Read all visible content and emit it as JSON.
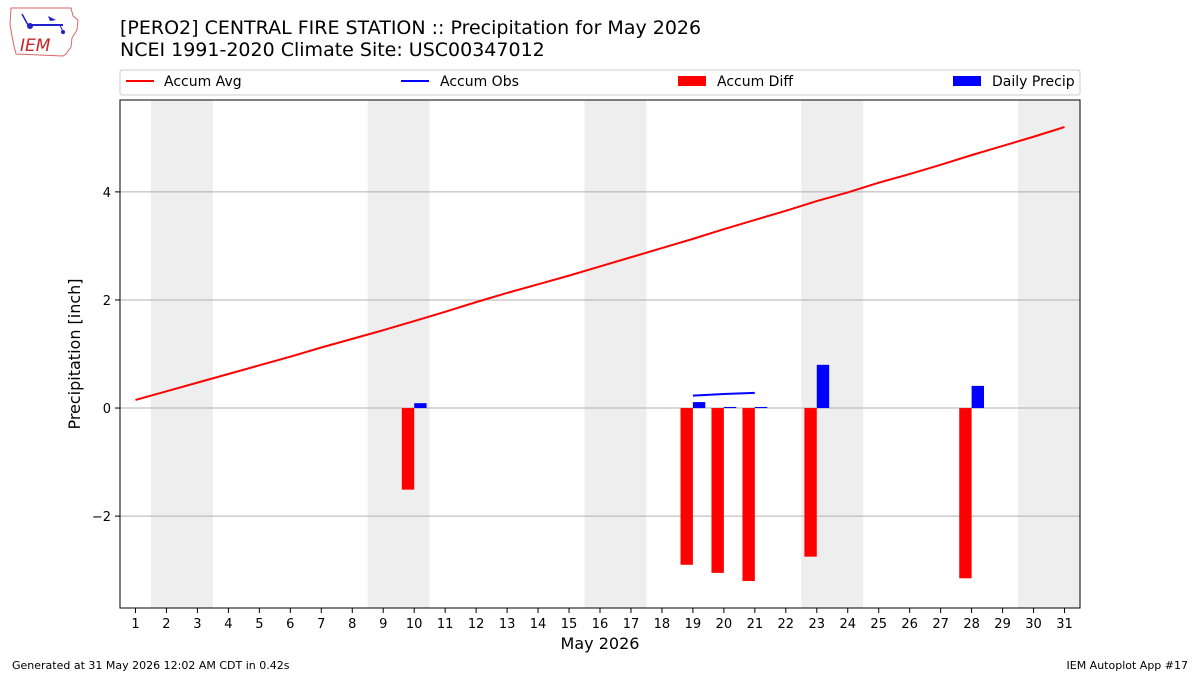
{
  "header": {
    "title_line1": "[PERO2] CENTRAL FIRE STATION :: Precipitation for May 2026",
    "title_line2": "NCEI 1991-2020 Climate Site: USC00347012"
  },
  "logo": {
    "text": "IEM"
  },
  "footer": {
    "left": "Generated at 31 May 2026 12:02 AM CDT in 0.42s",
    "right": "IEM Autoplot App #17"
  },
  "colors": {
    "avg": "#ff0000",
    "obs": "#0000ff",
    "diff": "#ff0000",
    "daily": "#0000ff",
    "weekend": "#eeeeee",
    "grid": "#b0b0b0"
  },
  "chart_data": {
    "type": "bar",
    "xlabel": "May 2026",
    "ylabel": "Precipitation [inch]",
    "xlim": [
      0.5,
      31.5
    ],
    "ylim": [
      -3.7,
      5.7
    ],
    "x_ticks": [
      1,
      2,
      3,
      4,
      5,
      6,
      7,
      8,
      9,
      10,
      11,
      12,
      13,
      14,
      15,
      16,
      17,
      18,
      19,
      20,
      21,
      22,
      23,
      24,
      25,
      26,
      27,
      28,
      29,
      30,
      31
    ],
    "y_ticks": [
      -2,
      0,
      2,
      4
    ],
    "grid": "horizontal",
    "legend_position": "top",
    "shaded_days": [
      [
        1.5,
        3.5
      ],
      [
        8.5,
        10.5
      ],
      [
        15.5,
        17.5
      ],
      [
        22.5,
        24.5
      ],
      [
        29.5,
        31.5
      ]
    ],
    "series": [
      {
        "name": "Accum Avg",
        "kind": "line",
        "x": [
          1,
          2,
          3,
          4,
          5,
          6,
          7,
          8,
          9,
          10,
          11,
          12,
          13,
          14,
          15,
          16,
          17,
          18,
          19,
          20,
          21,
          22,
          23,
          24,
          25,
          26,
          27,
          28,
          29,
          30,
          31
        ],
        "values": [
          0.15,
          0.31,
          0.47,
          0.63,
          0.79,
          0.95,
          1.12,
          1.28,
          1.44,
          1.61,
          1.78,
          1.96,
          2.13,
          2.29,
          2.45,
          2.62,
          2.79,
          2.96,
          3.13,
          3.31,
          3.48,
          3.65,
          3.83,
          3.99,
          4.17,
          4.33,
          4.5,
          4.68,
          4.85,
          5.02,
          5.2
        ]
      },
      {
        "name": "Accum Obs",
        "kind": "line",
        "x": [
          19,
          20,
          21
        ],
        "values": [
          0.23,
          0.26,
          0.28
        ]
      },
      {
        "name": "Accum Diff",
        "kind": "bar",
        "x": [
          10,
          19,
          20,
          21,
          23,
          28
        ],
        "values": [
          -1.51,
          -2.9,
          -3.05,
          -3.2,
          -2.75,
          -3.15
        ]
      },
      {
        "name": "Daily Precip",
        "kind": "bar",
        "x": [
          10,
          19,
          20,
          21,
          23,
          28
        ],
        "values": [
          0.09,
          0.11,
          0.02,
          0.02,
          0.8,
          0.41
        ]
      }
    ]
  }
}
